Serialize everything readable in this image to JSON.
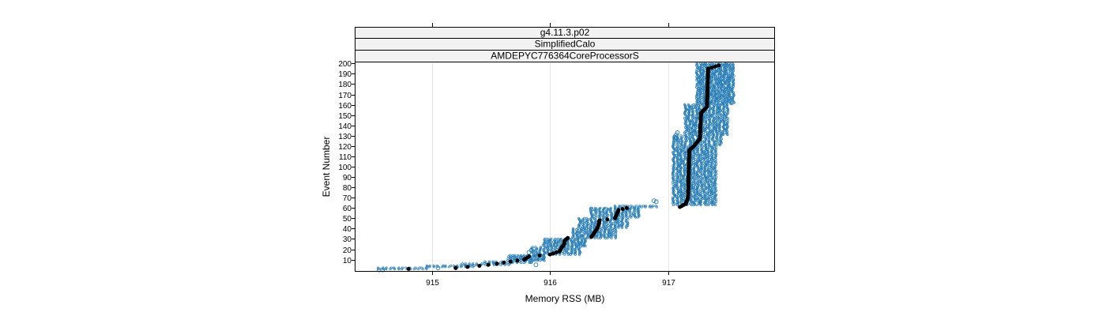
{
  "strips": [
    "g4.11.3.p02",
    "SimplifiedCalo",
    "AMDEPYC776364CoreProcessorS"
  ],
  "chart_data": {
    "type": "scatter",
    "xlabel": "Memory RSS (MB)",
    "ylabel": "Event Number",
    "xlim": [
      914.35,
      917.9
    ],
    "ylim": [
      -1,
      201
    ],
    "x_ticks": [
      915,
      916,
      917
    ],
    "y_ticks": [
      10,
      20,
      30,
      40,
      50,
      60,
      70,
      80,
      90,
      100,
      110,
      120,
      130,
      140,
      150,
      160,
      170,
      180,
      190,
      200
    ],
    "grid": true,
    "colors": {
      "runs": "#1f78b4",
      "median": "#000000"
    },
    "series": [
      {
        "role": "runs",
        "marker": "open-circle",
        "steps": [
          {
            "from": 1,
            "to": 2,
            "x": [
              914.55,
              914.95
            ]
          },
          {
            "from": 3,
            "to": 4,
            "x": [
              914.95,
              915.35
            ]
          },
          {
            "from": 5,
            "to": 6,
            "x": [
              915.25,
              915.65
            ]
          },
          {
            "from": 7,
            "to": 8,
            "x": [
              915.45,
              915.85
            ]
          },
          {
            "from": 9,
            "to": 14,
            "x": [
              915.65,
              915.95
            ]
          },
          {
            "from": 15,
            "to": 22,
            "x": [
              915.85,
              916.25
            ]
          },
          {
            "from": 23,
            "to": 30,
            "x": [
              915.95,
              916.3
            ]
          },
          {
            "from": 31,
            "to": 40,
            "x": [
              916.2,
              916.55
            ]
          },
          {
            "from": 41,
            "to": 50,
            "x": [
              916.25,
              916.65
            ]
          },
          {
            "from": 51,
            "to": 60,
            "x": [
              916.35,
              916.75
            ]
          },
          {
            "from": 61,
            "to": 62,
            "x": [
              916.55,
              916.9
            ]
          },
          {
            "from": 63,
            "to": 120,
            "x": [
              917.05,
              917.4
            ]
          },
          {
            "from": 121,
            "to": 130,
            "x": [
              917.05,
              917.45
            ]
          },
          {
            "from": 131,
            "to": 160,
            "x": [
              917.15,
              917.5
            ]
          },
          {
            "from": 161,
            "to": 200,
            "x": [
              917.25,
              917.55
            ]
          }
        ],
        "outliers": [
          {
            "x": 914.55,
            "y": 0
          },
          {
            "x": 914.58,
            "y": 0
          },
          {
            "x": 915.05,
            "y": 2
          },
          {
            "x": 915.2,
            "y": 2
          },
          {
            "x": 915.82,
            "y": 17
          },
          {
            "x": 915.84,
            "y": 19
          },
          {
            "x": 915.88,
            "y": 5
          },
          {
            "x": 916.35,
            "y": 59
          },
          {
            "x": 916.88,
            "y": 67
          },
          {
            "x": 916.9,
            "y": 66
          },
          {
            "x": 917.07,
            "y": 128
          },
          {
            "x": 917.07,
            "y": 131
          },
          {
            "x": 917.08,
            "y": 133
          },
          {
            "x": 917.06,
            "y": 126
          }
        ]
      },
      {
        "role": "median",
        "marker": "filled-circle",
        "points": [
          [
            914.8,
            1
          ],
          [
            915.2,
            2
          ],
          [
            915.4,
            4
          ],
          [
            915.55,
            6
          ],
          [
            915.78,
            10
          ],
          [
            915.82,
            13
          ],
          [
            916.0,
            15
          ],
          [
            916.08,
            18
          ],
          [
            916.1,
            22
          ],
          [
            916.12,
            25
          ],
          [
            916.12,
            28
          ],
          [
            916.15,
            31
          ],
          [
            916.35,
            32
          ],
          [
            916.4,
            40
          ],
          [
            916.42,
            48
          ],
          [
            916.55,
            50
          ],
          [
            916.58,
            58
          ],
          [
            916.65,
            60
          ],
          [
            917.1,
            61
          ],
          [
            917.15,
            64
          ],
          [
            917.17,
            70
          ],
          [
            917.18,
            116
          ],
          [
            917.22,
            120
          ],
          [
            917.27,
            127
          ],
          [
            917.28,
            152
          ],
          [
            917.33,
            158
          ],
          [
            917.34,
            195
          ],
          [
            917.43,
            198
          ]
        ]
      }
    ]
  }
}
